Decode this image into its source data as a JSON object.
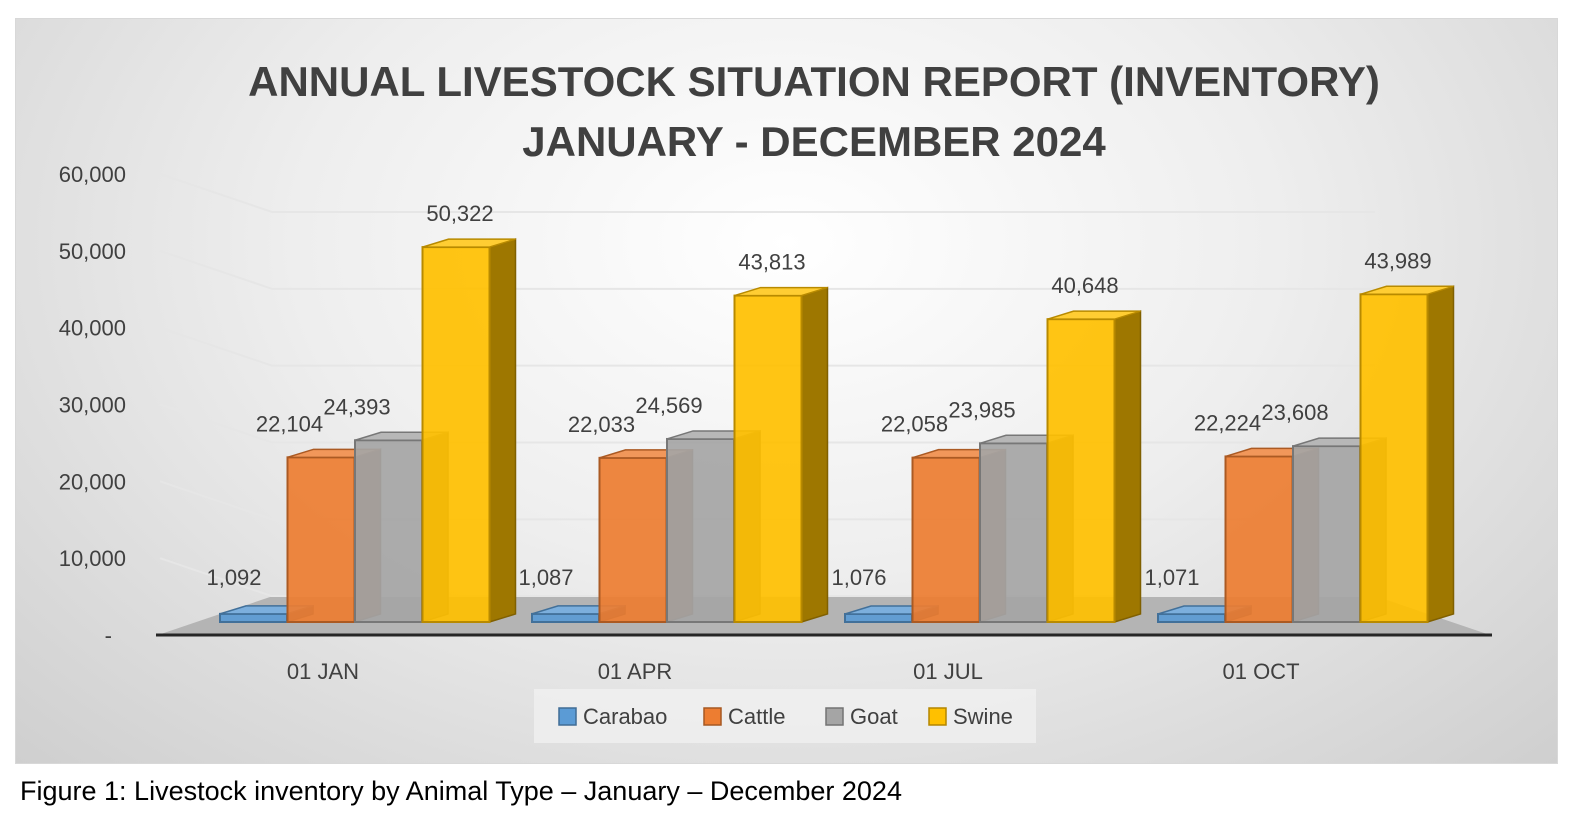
{
  "chart_data": {
    "type": "bar",
    "title_lines": [
      "ANNUAL LIVESTOCK SITUATION REPORT (INVENTORY)",
      "JANUARY - DECEMBER 2024"
    ],
    "categories": [
      "01 JAN",
      "01 APR",
      "01 JUL",
      "01 OCT"
    ],
    "series": [
      {
        "name": "Carabao",
        "values": [
          1092,
          1087,
          1076,
          1071
        ],
        "labels": [
          "1,092",
          "1,087",
          "1,076",
          "1,071"
        ],
        "color": "#5b9bd5"
      },
      {
        "name": "Cattle",
        "values": [
          22104,
          22033,
          22058,
          22224
        ],
        "labels": [
          "22,104",
          "22,033",
          "22,058",
          "22,224"
        ],
        "color": "#ed7d31"
      },
      {
        "name": "Goat",
        "values": [
          24393,
          24569,
          23985,
          23608
        ],
        "labels": [
          "24,393",
          "24,569",
          "23,985",
          "23,608"
        ],
        "color": "#a5a5a5"
      },
      {
        "name": "Swine",
        "values": [
          50322,
          43813,
          40648,
          43989
        ],
        "labels": [
          "50,322",
          "43,813",
          "40,648",
          "43,989"
        ],
        "color": "#ffc000"
      }
    ],
    "y_ticks": [
      {
        "value": 0,
        "label": "-"
      },
      {
        "value": 10000,
        "label": "10,000"
      },
      {
        "value": 20000,
        "label": "20,000"
      },
      {
        "value": 30000,
        "label": "30,000"
      },
      {
        "value": 40000,
        "label": "40,000"
      },
      {
        "value": 50000,
        "label": "50,000"
      },
      {
        "value": 60000,
        "label": "60,000"
      }
    ],
    "ylim": [
      0,
      60000
    ],
    "grid": true,
    "legend_position": "bottom"
  },
  "caption": "Figure 1: Livestock inventory by Animal Type – January – December 2024"
}
